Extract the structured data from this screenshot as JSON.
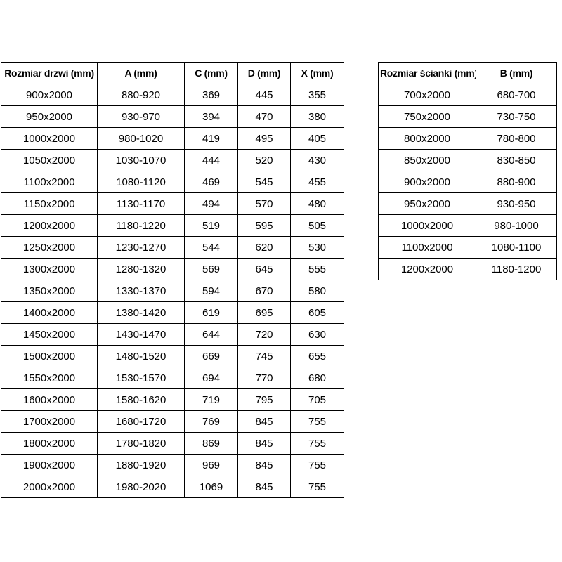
{
  "colors": {
    "background": "#ffffff",
    "border": "#000000",
    "text": "#000000"
  },
  "chart_data": [
    {
      "type": "table",
      "name": "door-sizes",
      "headers": [
        "Rozmiar drzwi (mm)",
        "A (mm)",
        "C (mm)",
        "D (mm)",
        "X (mm)"
      ],
      "rows": [
        [
          "900x2000",
          "880-920",
          "369",
          "445",
          "355"
        ],
        [
          "950x2000",
          "930-970",
          "394",
          "470",
          "380"
        ],
        [
          "1000x2000",
          "980-1020",
          "419",
          "495",
          "405"
        ],
        [
          "1050x2000",
          "1030-1070",
          "444",
          "520",
          "430"
        ],
        [
          "1100x2000",
          "1080-1120",
          "469",
          "545",
          "455"
        ],
        [
          "1150x2000",
          "1130-1170",
          "494",
          "570",
          "480"
        ],
        [
          "1200x2000",
          "1180-1220",
          "519",
          "595",
          "505"
        ],
        [
          "1250x2000",
          "1230-1270",
          "544",
          "620",
          "530"
        ],
        [
          "1300x2000",
          "1280-1320",
          "569",
          "645",
          "555"
        ],
        [
          "1350x2000",
          "1330-1370",
          "594",
          "670",
          "580"
        ],
        [
          "1400x2000",
          "1380-1420",
          "619",
          "695",
          "605"
        ],
        [
          "1450x2000",
          "1430-1470",
          "644",
          "720",
          "630"
        ],
        [
          "1500x2000",
          "1480-1520",
          "669",
          "745",
          "655"
        ],
        [
          "1550x2000",
          "1530-1570",
          "694",
          "770",
          "680"
        ],
        [
          "1600x2000",
          "1580-1620",
          "719",
          "795",
          "705"
        ],
        [
          "1700x2000",
          "1680-1720",
          "769",
          "845",
          "755"
        ],
        [
          "1800x2000",
          "1780-1820",
          "869",
          "845",
          "755"
        ],
        [
          "1900x2000",
          "1880-1920",
          "969",
          "845",
          "755"
        ],
        [
          "2000x2000",
          "1980-2020",
          "1069",
          "845",
          "755"
        ]
      ]
    },
    {
      "type": "table",
      "name": "wall-sizes",
      "headers": [
        "Rozmiar ścianki (mm)",
        "B (mm)"
      ],
      "rows": [
        [
          "700x2000",
          "680-700"
        ],
        [
          "750x2000",
          "730-750"
        ],
        [
          "800x2000",
          "780-800"
        ],
        [
          "850x2000",
          "830-850"
        ],
        [
          "900x2000",
          "880-900"
        ],
        [
          "950x2000",
          "930-950"
        ],
        [
          "1000x2000",
          "980-1000"
        ],
        [
          "1100x2000",
          "1080-1100"
        ],
        [
          "1200x2000",
          "1180-1200"
        ]
      ]
    }
  ]
}
